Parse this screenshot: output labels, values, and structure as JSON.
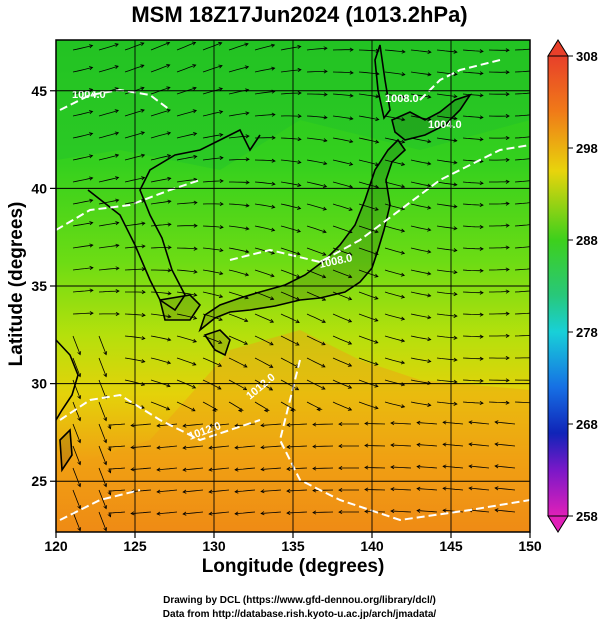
{
  "title": "MSM 18Z17Jun2024 (1013.2hPa)",
  "xlabel": "Longitude (degrees)",
  "ylabel": "Latitude  (degrees)",
  "x_ticks": [
    "120",
    "125",
    "130",
    "135",
    "140",
    "145",
    "150"
  ],
  "y_ticks": [
    "25",
    "30",
    "35",
    "40",
    "45"
  ],
  "colorbar_ticks": [
    "308",
    "298",
    "288",
    "278",
    "268",
    "258"
  ],
  "contour_labels": [
    "1004.0",
    "1008.0",
    "1004.0",
    "1008.0",
    "1012.0",
    "1012.0"
  ],
  "credit_line1": "Drawing by DCL (https://www.gfd-dennou.org/library/dcl/)",
  "credit_line2": "Data from http://database.rish.kyoto-u.ac.jp/arch/jmadata/",
  "map": {
    "lon_range": [
      120,
      150
    ],
    "lat_range": [
      22.4,
      47.6
    ],
    "colorbar_range": [
      258,
      308
    ],
    "colors": {
      "coast": "#000000",
      "contour": "#ffffff",
      "streamline": "#000000",
      "grid": "#000000"
    }
  }
}
